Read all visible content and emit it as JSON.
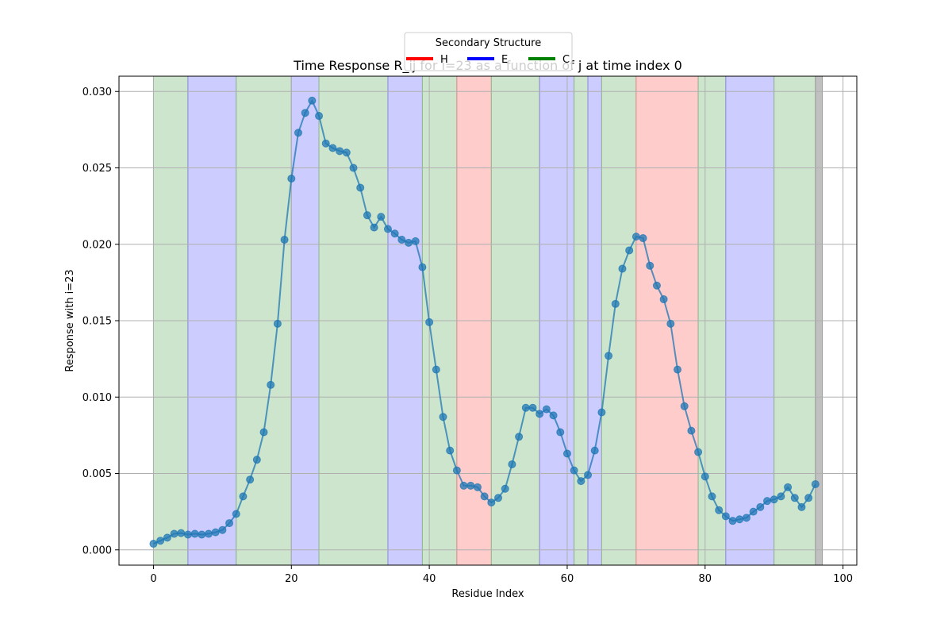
{
  "chart_data": {
    "type": "line",
    "title": "Time Response R_ij for i=23 as a function of j at time index 0",
    "xlabel": "Residue Index",
    "ylabel": "Response with i=23",
    "xlim": [
      -5,
      102
    ],
    "ylim": [
      -0.001,
      0.031
    ],
    "xticks": [
      0,
      20,
      40,
      60,
      80,
      100
    ],
    "yticks": [
      0.0,
      0.005,
      0.01,
      0.015,
      0.02,
      0.025,
      0.03
    ],
    "ytick_labels": [
      "0.000",
      "0.005",
      "0.010",
      "0.015",
      "0.020",
      "0.025",
      "0.030"
    ],
    "grid": true,
    "line_color": "#1f77b4",
    "series": [
      {
        "x": [
          0,
          1,
          2,
          3,
          4,
          5,
          6,
          7,
          8,
          9,
          10,
          11,
          12,
          13,
          14,
          15,
          16,
          17,
          18,
          19,
          20,
          21,
          22,
          23,
          24,
          25,
          26,
          27,
          28,
          29,
          30,
          31,
          32,
          33,
          34,
          35,
          36,
          37,
          38,
          39,
          40,
          41,
          42,
          43,
          44,
          45,
          46,
          47,
          48,
          49,
          50,
          51,
          52,
          53,
          54,
          55,
          56,
          57,
          58,
          59,
          60,
          61,
          62,
          63,
          64,
          65,
          66,
          67,
          68,
          69,
          70,
          71,
          72,
          73,
          74,
          75,
          76,
          77,
          78,
          79,
          80,
          81,
          82,
          83,
          84,
          85,
          86,
          87,
          88,
          89,
          90,
          91,
          92,
          93,
          94,
          95,
          96
        ],
        "values": [
          0.0004,
          0.0006,
          0.0008,
          0.00105,
          0.0011,
          0.001,
          0.00105,
          0.001,
          0.00105,
          0.00115,
          0.0013,
          0.00175,
          0.00235,
          0.0035,
          0.0046,
          0.0059,
          0.0077,
          0.0108,
          0.0148,
          0.0203,
          0.0243,
          0.0273,
          0.0286,
          0.0294,
          0.0284,
          0.0266,
          0.0263,
          0.0261,
          0.026,
          0.025,
          0.0237,
          0.0219,
          0.0211,
          0.0218,
          0.021,
          0.0207,
          0.0203,
          0.0201,
          0.0202,
          0.0185,
          0.0149,
          0.0118,
          0.0087,
          0.0065,
          0.0052,
          0.0042,
          0.0042,
          0.0041,
          0.0035,
          0.0031,
          0.0034,
          0.004,
          0.0056,
          0.0074,
          0.0093,
          0.0093,
          0.0089,
          0.0092,
          0.0088,
          0.0077,
          0.0063,
          0.0052,
          0.0045,
          0.0049,
          0.0065,
          0.009,
          0.0127,
          0.0161,
          0.0184,
          0.0196,
          0.0205,
          0.0204,
          0.0186,
          0.0173,
          0.0164,
          0.0148,
          0.0118,
          0.0094,
          0.0078,
          0.0064,
          0.0048,
          0.0035,
          0.0026,
          0.0022,
          0.0019,
          0.002,
          0.0021,
          0.0025,
          0.0028,
          0.0032,
          0.0033,
          0.0035,
          0.0041,
          0.0034,
          0.0028,
          0.0034,
          0.0043
        ]
      }
    ],
    "regions": [
      {
        "start": 0,
        "end": 5,
        "type": "C"
      },
      {
        "start": 5,
        "end": 12,
        "type": "E"
      },
      {
        "start": 12,
        "end": 20,
        "type": "C"
      },
      {
        "start": 20,
        "end": 24,
        "type": "E"
      },
      {
        "start": 24,
        "end": 34,
        "type": "C"
      },
      {
        "start": 34,
        "end": 39,
        "type": "E"
      },
      {
        "start": 39,
        "end": 44,
        "type": "C"
      },
      {
        "start": 44,
        "end": 49,
        "type": "H"
      },
      {
        "start": 49,
        "end": 56,
        "type": "C"
      },
      {
        "start": 56,
        "end": 61,
        "type": "E"
      },
      {
        "start": 61,
        "end": 63,
        "type": "C"
      },
      {
        "start": 63,
        "end": 65,
        "type": "E"
      },
      {
        "start": 65,
        "end": 70,
        "type": "C"
      },
      {
        "start": 70,
        "end": 79,
        "type": "H"
      },
      {
        "start": 79,
        "end": 83,
        "type": "C"
      },
      {
        "start": 83,
        "end": 90,
        "type": "E"
      },
      {
        "start": 90,
        "end": 96,
        "type": "C"
      },
      {
        "start": 96,
        "end": 97,
        "type": "other"
      }
    ],
    "region_colors": {
      "H": "#ffcccc",
      "E": "#ccccff",
      "C": "#cce5cc",
      "other": "#c0c0c0"
    },
    "legend": {
      "title": "Secondary Structure",
      "placement": "top-center",
      "entries": [
        {
          "label": "H",
          "color": "#ff0000"
        },
        {
          "label": "E",
          "color": "#0000ff"
        },
        {
          "label": "C",
          "color": "#008000"
        }
      ]
    }
  }
}
